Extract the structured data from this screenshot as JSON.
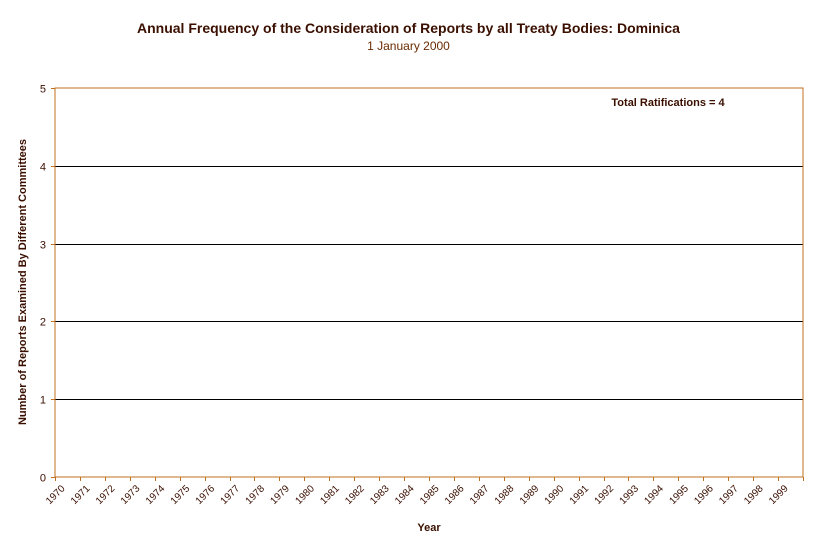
{
  "chart_data": {
    "type": "bar",
    "title": "Annual Frequency of the Consideration of Reports by all Treaty Bodies: Dominica",
    "subtitle": "1 January 2000",
    "xlabel": "Year",
    "ylabel": "Number of Reports Examined By Different Committees",
    "categories": [
      "1970",
      "1971",
      "1972",
      "1973",
      "1974",
      "1975",
      "1976",
      "1977",
      "1978",
      "1979",
      "1980",
      "1981",
      "1982",
      "1983",
      "1984",
      "1985",
      "1986",
      "1987",
      "1988",
      "1989",
      "1990",
      "1991",
      "1992",
      "1993",
      "1994",
      "1995",
      "1996",
      "1997",
      "1998",
      "1999"
    ],
    "values": [
      0,
      0,
      0,
      0,
      0,
      0,
      0,
      0,
      0,
      0,
      0,
      0,
      0,
      0,
      0,
      0,
      0,
      0,
      0,
      0,
      0,
      0,
      0,
      0,
      0,
      0,
      0,
      0,
      0,
      0
    ],
    "ylim": [
      0,
      5
    ],
    "yticks": [
      0,
      1,
      2,
      3,
      4,
      5
    ],
    "grid": true,
    "annotation": "Total Ratifications = 4",
    "colors": {
      "axis": "#c07020",
      "gridline": "#000000",
      "text": "#3a0f00",
      "bar": "#000080"
    }
  }
}
